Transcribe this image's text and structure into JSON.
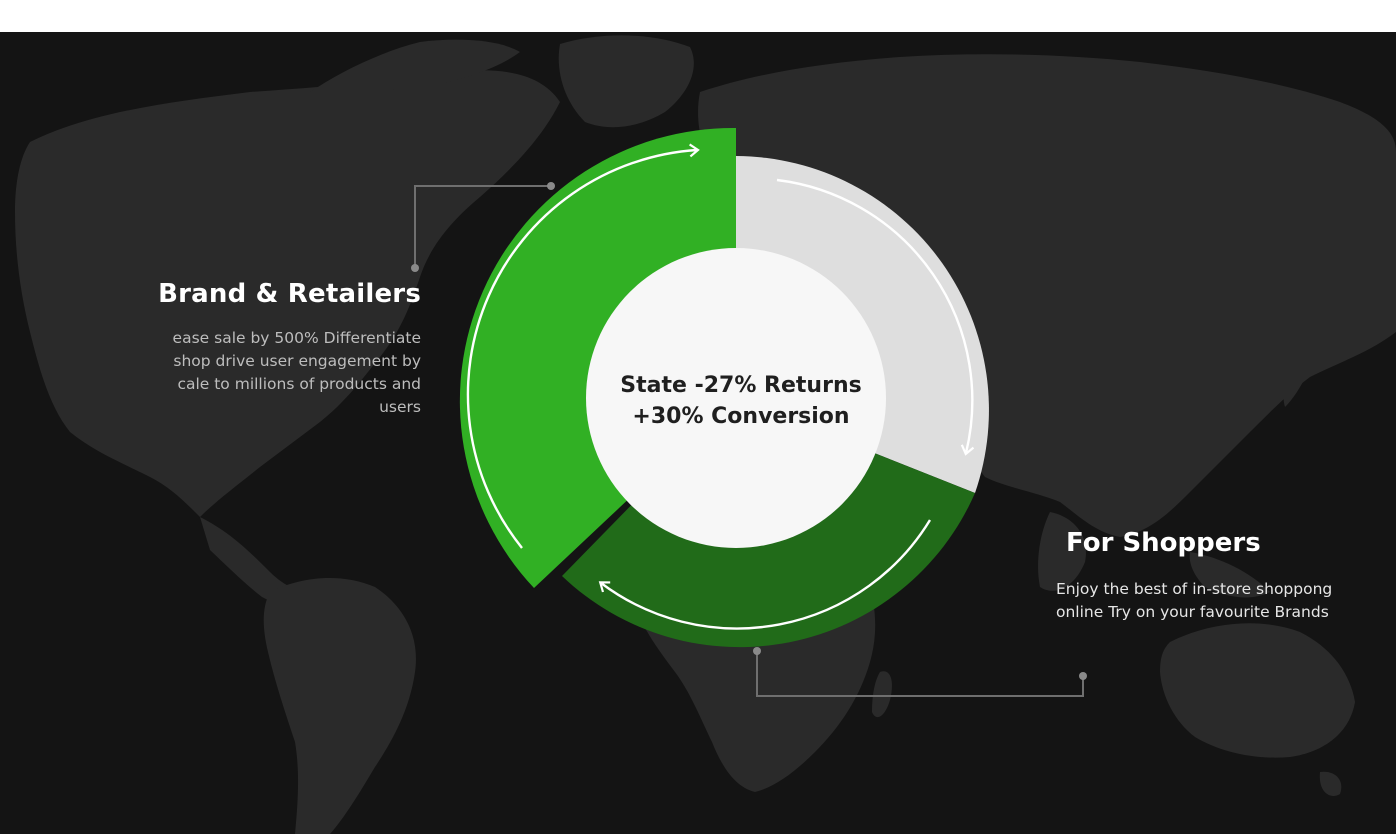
{
  "colors": {
    "background": "#141414",
    "map_land": "#2a2a2a",
    "segment_primary": "#31b024",
    "segment_secondary": "#216b19",
    "segment_neutral": "#dedede",
    "center_fill": "#f7f7f7",
    "connector": "#6f6f6f"
  },
  "left_panel": {
    "title": "Brand & Retailers",
    "description_lines": [
      "ease sale by 500% Differentiate",
      "shop drive user engagement by",
      "cale to millions of products and",
      "users"
    ]
  },
  "right_panel": {
    "title": "For Shoppers",
    "description_lines": [
      "Enjoy the best of in-store shoppong",
      "online Try on your favourite Brands"
    ]
  },
  "center": {
    "line1": "State -27% Returns",
    "line2": "+30% Conversion"
  },
  "icons": {
    "map": "world-map-icon",
    "arrows": "cycle-arrow-icon",
    "connector_dot": "dot-icon"
  }
}
